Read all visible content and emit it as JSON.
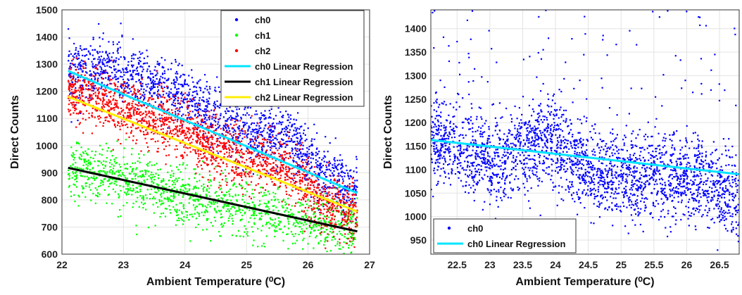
{
  "chart_data": [
    {
      "type": "scatter",
      "xlabel": "Ambient Temperature (⁰C)",
      "ylabel": "Direct Counts",
      "xlim": [
        22,
        27
      ],
      "ylim": [
        600,
        1500
      ],
      "xticks": [
        "22",
        "23",
        "24",
        "25",
        "26",
        "27"
      ],
      "yticks": [
        "600",
        "700",
        "800",
        "900",
        "1000",
        "1100",
        "1200",
        "1300",
        "1400",
        "1500"
      ],
      "grid": true,
      "legend_position": "top-right",
      "series": [
        {
          "name": "ch0",
          "color": "#0000ff",
          "kind": "scatter",
          "cloud": [
            [
              22.1,
              1280
            ],
            [
              22.5,
              1270
            ],
            [
              22.8,
              1300
            ],
            [
              23.2,
              1240
            ],
            [
              23.6,
              1210
            ],
            [
              24.0,
              1170
            ],
            [
              24.4,
              1130
            ],
            [
              24.8,
              1080
            ],
            [
              25.2,
              1050
            ],
            [
              25.6,
              1030
            ],
            [
              25.8,
              1000
            ],
            [
              26.2,
              900
            ],
            [
              26.6,
              850
            ],
            [
              26.8,
              840
            ]
          ]
        },
        {
          "name": "ch1",
          "color": "#00ff00",
          "kind": "scatter",
          "cloud": [
            [
              22.1,
              920
            ],
            [
              22.5,
              900
            ],
            [
              22.8,
              890
            ],
            [
              23.2,
              860
            ],
            [
              23.6,
              830
            ],
            [
              24.0,
              820
            ],
            [
              24.4,
              790
            ],
            [
              24.8,
              770
            ],
            [
              25.2,
              760
            ],
            [
              25.6,
              740
            ],
            [
              25.8,
              730
            ],
            [
              26.2,
              710
            ],
            [
              26.6,
              700
            ],
            [
              26.8,
              690
            ]
          ]
        },
        {
          "name": "ch2",
          "color": "#ff0000",
          "kind": "scatter",
          "cloud": [
            [
              22.1,
              1200
            ],
            [
              22.5,
              1180
            ],
            [
              22.8,
              1160
            ],
            [
              23.2,
              1120
            ],
            [
              23.6,
              1090
            ],
            [
              24.0,
              1050
            ],
            [
              24.4,
              1000
            ],
            [
              24.8,
              960
            ],
            [
              25.2,
              940
            ],
            [
              25.6,
              920
            ],
            [
              25.8,
              880
            ],
            [
              26.2,
              800
            ],
            [
              26.6,
              760
            ],
            [
              26.8,
              750
            ]
          ]
        },
        {
          "name": "ch0 Linear Regression",
          "color": "#00e5ff",
          "kind": "line",
          "x": [
            22.1,
            26.8
          ],
          "y": [
            1275,
            825
          ]
        },
        {
          "name": "ch1 Linear Regression",
          "color": "#000000",
          "kind": "line",
          "x": [
            22.1,
            26.8
          ],
          "y": [
            918,
            684
          ]
        },
        {
          "name": "ch2 Linear Regression",
          "color": "#ffee00",
          "kind": "line",
          "x": [
            22.1,
            26.8
          ],
          "y": [
            1180,
            757
          ]
        }
      ]
    },
    {
      "type": "scatter",
      "xlabel": "Ambient Temperature (⁰C)",
      "ylabel": "Direct Counts",
      "xlim": [
        22.1,
        26.8
      ],
      "ylim": [
        920,
        1440
      ],
      "xticks": [
        "22.5",
        "23",
        "23.5",
        "24",
        "24.5",
        "25",
        "25.5",
        "26",
        "26.5"
      ],
      "yticks": [
        "950",
        "1000",
        "1050",
        "1100",
        "1150",
        "1200",
        "1250",
        "1300",
        "1350",
        "1400"
      ],
      "grid": true,
      "legend_position": "bottom-left",
      "series": [
        {
          "name": "ch0",
          "color": "#0000ff",
          "kind": "scatter",
          "cloud": [
            [
              22.1,
              1160
            ],
            [
              22.5,
              1150
            ],
            [
              22.8,
              1130
            ],
            [
              23.2,
              1120
            ],
            [
              23.6,
              1150
            ],
            [
              23.9,
              1160
            ],
            [
              24.2,
              1120
            ],
            [
              24.6,
              1090
            ],
            [
              25.0,
              1090
            ],
            [
              25.4,
              1090
            ],
            [
              25.8,
              1090
            ],
            [
              26.2,
              1080
            ],
            [
              26.6,
              1050
            ],
            [
              26.8,
              1040
            ]
          ]
        },
        {
          "name": "ch0 Linear Regression",
          "color": "#00e5ff",
          "kind": "line",
          "x": [
            22.1,
            26.8
          ],
          "y": [
            1163,
            1090
          ]
        }
      ]
    }
  ]
}
